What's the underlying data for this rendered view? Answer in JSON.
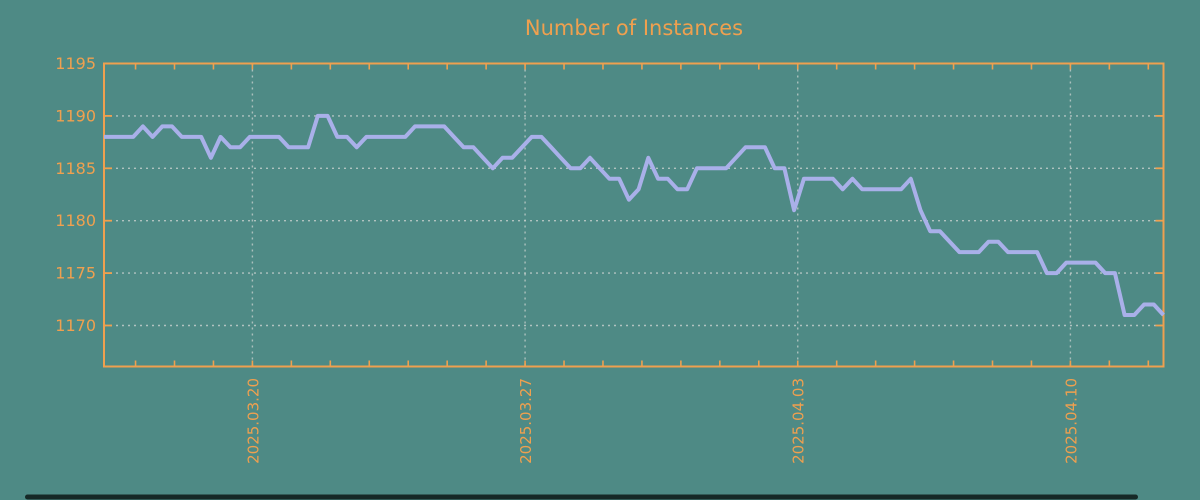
{
  "title": "Number of Instances",
  "colors": {
    "background": "#4e8a85",
    "axis": "#efa04f",
    "text": "#efa04f",
    "grid": "#c3cecb",
    "line": "#a9b0e9",
    "bottom_bar": "#0d1716"
  },
  "chart_data": {
    "type": "line",
    "title": "Number of Instances",
    "xlabel": "",
    "ylabel": "",
    "ylim": [
      1166,
      1195
    ],
    "y_ticks": [
      1170,
      1175,
      1180,
      1185,
      1190,
      1195
    ],
    "x_tick_labels": [
      "2025.03.20",
      "2025.03.27",
      "2025.04.03",
      "2025.04.10"
    ],
    "x_tick_positions_days": [
      3.81,
      10.81,
      17.81,
      24.81
    ],
    "x_total_days": 27.2,
    "minor_tick_first_day": 0.81,
    "minor_tick_every_days": 1,
    "grid": "dotted",
    "legend": false,
    "series": [
      {
        "name": "instances",
        "values": [
          1188,
          1188,
          1188,
          1188,
          1189,
          1188,
          1189,
          1189,
          1188,
          1188,
          1188,
          1186,
          1188,
          1187,
          1187,
          1188,
          1188,
          1188,
          1188,
          1187,
          1187,
          1187,
          1190,
          1190,
          1188,
          1188,
          1187,
          1188,
          1188,
          1188,
          1188,
          1188,
          1189,
          1189,
          1189,
          1189,
          1188,
          1187,
          1187,
          1186,
          1185,
          1186,
          1186,
          1187,
          1188,
          1188,
          1187,
          1186,
          1185,
          1185,
          1186,
          1185,
          1184,
          1184,
          1182,
          1183,
          1186,
          1184,
          1184,
          1183,
          1183,
          1185,
          1185,
          1185,
          1185,
          1186,
          1187,
          1187,
          1187,
          1185,
          1185,
          1181,
          1184,
          1184,
          1184,
          1184,
          1183,
          1184,
          1183,
          1183,
          1183,
          1183,
          1183,
          1184,
          1181,
          1179,
          1179,
          1178,
          1177,
          1177,
          1177,
          1178,
          1178,
          1177,
          1177,
          1177,
          1177,
          1175,
          1175,
          1176,
          1176,
          1176,
          1176,
          1175,
          1175,
          1171,
          1171,
          1172,
          1172,
          1171
        ]
      }
    ]
  }
}
